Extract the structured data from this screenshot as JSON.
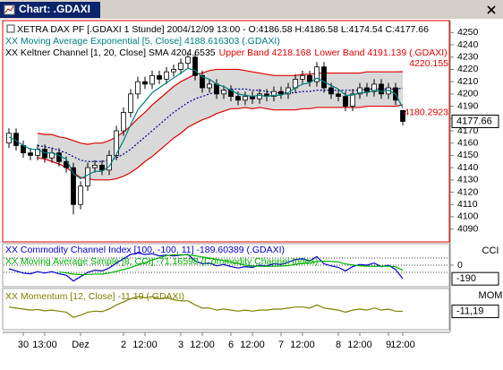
{
  "window_title": "Chart: .GDAXI",
  "chart_data": [
    {
      "type": "candlestick",
      "title": "XETRA DAX PF [.GDAXI  1 Stunde] 2004/12/09 13:00 - O:4186.58 H:4186.58 L:4174.54 C:4177.66",
      "categories": [
        null,
        null,
        "30",
        null,
        null,
        "13:00",
        null,
        null,
        null,
        null,
        "Dez",
        null,
        null,
        null,
        null,
        null,
        "2",
        null,
        null,
        "12:00",
        null,
        null,
        null,
        null,
        "3",
        null,
        null,
        "12:00",
        null,
        null,
        null,
        "6",
        null,
        null,
        "12:00",
        null,
        null,
        null,
        "7",
        null,
        null,
        "12:00",
        null,
        null,
        null,
        null,
        "8",
        null,
        null,
        "12:00",
        null,
        null,
        null,
        "9",
        null,
        "12:00"
      ],
      "open": [
        4160,
        4168,
        4158,
        4152,
        4150,
        4155,
        4148,
        4152,
        4145,
        4140,
        4110,
        4125,
        4140,
        4142,
        4138,
        4150,
        4170,
        4185,
        4200,
        4210,
        4208,
        4215,
        4212,
        4218,
        4220,
        4225,
        4230,
        4215,
        4205,
        4208,
        4200,
        4203,
        4198,
        4195,
        4198,
        4196,
        4200,
        4198,
        4202,
        4200,
        4205,
        4212,
        4215,
        4210,
        4222,
        4205,
        4200,
        4198,
        4190,
        4200,
        4205,
        4202,
        4208,
        4200,
        4205,
        4186.58
      ],
      "high": [
        4172,
        4172,
        4162,
        4156,
        4159,
        4159,
        4156,
        4156,
        4149,
        4144,
        4129,
        4144,
        4146,
        4146,
        4154,
        4174,
        4189,
        4204,
        4214,
        4214,
        4219,
        4219,
        4222,
        4224,
        4229,
        4234,
        4234,
        4219,
        4212,
        4212,
        4207,
        4207,
        4202,
        4202,
        4202,
        4204,
        4204,
        4206,
        4206,
        4209,
        4216,
        4219,
        4219,
        4226,
        4226,
        4209,
        4204,
        4202,
        4204,
        4209,
        4209,
        4212,
        4212,
        4209,
        4209,
        4186.58
      ],
      "low": [
        4156,
        4154,
        4148,
        4146,
        4146,
        4144,
        4144,
        4141,
        4136,
        4102,
        4106,
        4121,
        4136,
        4134,
        4134,
        4146,
        4166,
        4181,
        4196,
        4204,
        4204,
        4208,
        4208,
        4214,
        4216,
        4221,
        4211,
        4201,
        4201,
        4196,
        4196,
        4194,
        4191,
        4191,
        4192,
        4192,
        4194,
        4194,
        4196,
        4196,
        4201,
        4208,
        4206,
        4206,
        4201,
        4196,
        4194,
        4186,
        4186,
        4196,
        4198,
        4198,
        4196,
        4196,
        4191,
        4174.54
      ],
      "close": [
        4168,
        4158,
        4152,
        4150,
        4155,
        4148,
        4152,
        4145,
        4140,
        4110,
        4125,
        4140,
        4142,
        4138,
        4150,
        4170,
        4185,
        4200,
        4210,
        4208,
        4215,
        4212,
        4218,
        4220,
        4225,
        4230,
        4215,
        4205,
        4208,
        4200,
        4203,
        4198,
        4195,
        4198,
        4196,
        4200,
        4198,
        4202,
        4200,
        4205,
        4212,
        4215,
        4210,
        4222,
        4205,
        4200,
        4198,
        4190,
        4200,
        4205,
        4202,
        4208,
        4200,
        4205,
        4195,
        4177.66
      ],
      "up_color": "#ffffff",
      "down_color": "#000000",
      "band_fill": "#d9d9d9",
      "series": [
        {
          "name": "XX Moving Average Exponential [5, Close] 4188.616303 (.GDAXI)",
          "color": "#008080",
          "values": [
            4165,
            4162,
            4158,
            4155,
            4155,
            4152,
            4152,
            4150,
            4147,
            4135,
            4131,
            4134,
            4137,
            4137,
            4141,
            4151,
            4162,
            4175,
            4187,
            4194,
            4201,
            4205,
            4209,
            4213,
            4217,
            4221,
            4219,
            4214,
            4212,
            4208,
            4206,
            4203,
            4200,
            4199,
            4198,
            4199,
            4198,
            4199,
            4199,
            4201,
            4205,
            4208,
            4209,
            4213,
            4210,
            4207,
            4204,
            4199,
            4199,
            4201,
            4201,
            4203,
            4202,
            4203,
            4200,
            4188.616303
          ]
        },
        {
          "name": "XX Keltner Channel [1, 20, Close] SMA 4204.6535",
          "color": "#0000a0",
          "text_color": "#000000",
          "style": "dotted",
          "values": [
            null,
            null,
            null,
            null,
            4158,
            4157,
            4156,
            4154,
            4152,
            4149,
            4146,
            4145,
            4145,
            4145,
            4146,
            4148,
            4151,
            4155,
            4160,
            4165,
            4170,
            4175,
            4180,
            4185,
            4189,
            4193,
            4196,
            4198,
            4200,
            4202,
            4203,
            4204,
            4204,
            4204,
            4203,
            4203,
            4202,
            4201,
            4201,
            4201,
            4201,
            4202,
            4202,
            4203,
            4203,
            4203,
            4203,
            4203,
            4203,
            4203,
            4204,
            4204,
            4204,
            4204,
            4204,
            4204.6535
          ]
        },
        {
          "name": "Upper Band 4218.168",
          "color": "#e00000",
          "values": [
            null,
            null,
            null,
            null,
            4168,
            4167,
            4167,
            4165,
            4164,
            4162,
            4160,
            4159,
            4160,
            4160,
            4162,
            4165,
            4169,
            4174,
            4180,
            4185,
            4191,
            4196,
            4201,
            4206,
            4210,
            4213,
            4216,
            4217,
            4219,
            4220,
            4220,
            4220,
            4220,
            4219,
            4218,
            4217,
            4216,
            4215,
            4215,
            4215,
            4215,
            4216,
            4216,
            4217,
            4217,
            4217,
            4217,
            4217,
            4217,
            4217,
            4218,
            4218,
            4218,
            4218,
            4218,
            4218.168
          ]
        },
        {
          "name": "Lower Band 4191.139 (.GDAXI)",
          "color": "#e00000",
          "values": [
            null,
            null,
            null,
            null,
            4148,
            4147,
            4145,
            4143,
            4140,
            4136,
            4132,
            4131,
            4130,
            4130,
            4130,
            4131,
            4133,
            4136,
            4140,
            4145,
            4149,
            4154,
            4159,
            4164,
            4168,
            4173,
            4176,
            4179,
            4181,
            4184,
            4186,
            4188,
            4188,
            4189,
            4188,
            4189,
            4188,
            4187,
            4187,
            4187,
            4187,
            4188,
            4188,
            4189,
            4189,
            4189,
            4189,
            4189,
            4189,
            4189,
            4190,
            4190,
            4190,
            4190,
            4190,
            4191.139
          ]
        }
      ],
      "annotations": [
        {
          "value": 4220.155,
          "label": "4220.155"
        },
        {
          "value": 4180.2923,
          "label": "4180.2923"
        }
      ],
      "last_label": "4177.66",
      "ylim": [
        4081,
        4259
      ],
      "yticks": [
        4090,
        4100,
        4110,
        4120,
        4130,
        4140,
        4150,
        4160,
        4170,
        4180,
        4190,
        4200,
        4210,
        4220,
        4230,
        4240,
        4250
      ]
    },
    {
      "type": "line",
      "series": [
        {
          "name": "XX Commodity Channel Index [100, -100, 11] -189.60389 (.GDAXI)",
          "color": "#0000cc",
          "values": [
            -50,
            -80,
            -110,
            -120,
            -90,
            -110,
            -90,
            -120,
            -140,
            -220,
            -160,
            -100,
            -70,
            -80,
            -40,
            30,
            90,
            150,
            170,
            150,
            160,
            130,
            140,
            130,
            140,
            150,
            60,
            20,
            30,
            -10,
            10,
            -20,
            -40,
            -20,
            -30,
            0,
            -10,
            20,
            10,
            40,
            80,
            90,
            60,
            120,
            20,
            -10,
            -30,
            -80,
            -20,
            10,
            0,
            30,
            -20,
            0,
            -60,
            -189.60389
          ]
        },
        {
          "name": "XX Moving Average Simple [8, CCI] -71.16598 (Commodity Channel Index)",
          "color": "#00b000",
          "values": [
            null,
            null,
            null,
            null,
            null,
            null,
            null,
            -96,
            -107,
            -125,
            -131,
            -129,
            -124,
            -123,
            -110,
            -85,
            -61,
            -34,
            1,
            36,
            71,
            104,
            133,
            146,
            145,
            143,
            131,
            115,
            101,
            81,
            65,
            43,
            21,
            0,
            -11,
            -15,
            -16,
            -14,
            -11,
            -6,
            11,
            25,
            34,
            51,
            56,
            54,
            44,
            18,
            3,
            -9,
            -13,
            -16,
            -14,
            -15,
            -21,
            -71.16598
          ]
        }
      ],
      "levels": [
        100,
        -100
      ],
      "axis_label": "CCI",
      "last_label": "-190",
      "ylim": [
        -300,
        300
      ],
      "yticks": [
        0
      ]
    },
    {
      "type": "line",
      "series": [
        {
          "name": "XX Momentum [12, Close] -11.19 (.GDAXI)",
          "color": "#808000",
          "values": [
            10,
            5,
            0,
            -5,
            -2,
            -8,
            -5,
            -10,
            -15,
            -40,
            -30,
            -15,
            -10,
            -12,
            0,
            20,
            35,
            50,
            60,
            55,
            60,
            50,
            55,
            45,
            40,
            40,
            20,
            5,
            5,
            -5,
            0,
            -5,
            -10,
            -5,
            -10,
            -5,
            -5,
            0,
            0,
            5,
            10,
            10,
            5,
            20,
            5,
            0,
            -5,
            -15,
            -5,
            0,
            -5,
            5,
            -5,
            0,
            -10,
            -11.19
          ]
        }
      ],
      "axis_label": "MOM",
      "last_label": "-11,19",
      "ylim": [
        -100,
        100
      ]
    }
  ]
}
